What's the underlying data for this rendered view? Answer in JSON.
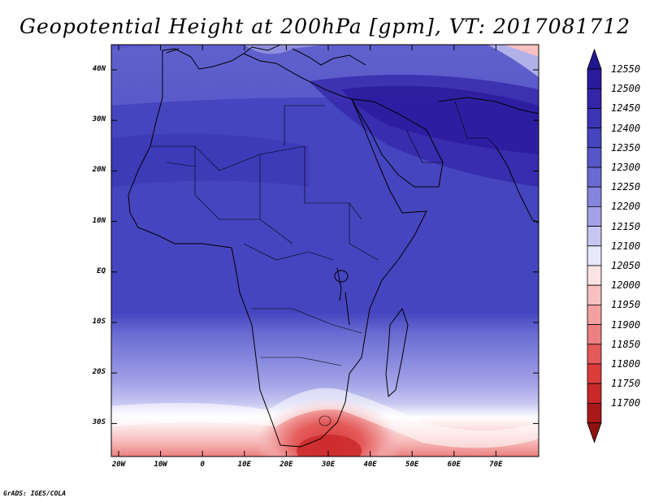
{
  "title": "Geopotential Height at 200hPa [gpm], VT: 2017081712",
  "credit": "GrADS: IGES/COLA",
  "lat_ticks": [
    "40N",
    "30N",
    "20N",
    "10N",
    "EQ",
    "10S",
    "20S",
    "30S"
  ],
  "lon_ticks": [
    "20W",
    "10W",
    "0",
    "10E",
    "20E",
    "30E",
    "40E",
    "50E",
    "60E",
    "70E"
  ],
  "colorbar": {
    "levels": [
      "12550",
      "12500",
      "12450",
      "12400",
      "12350",
      "12300",
      "12250",
      "12200",
      "12150",
      "12100",
      "12050",
      "12000",
      "11950",
      "11900",
      "11850",
      "11800",
      "11750",
      "11700"
    ],
    "colors": [
      "#2a1a9e",
      "#3325a8",
      "#3b35b4",
      "#4545bf",
      "#5656c8",
      "#6a6ad2",
      "#8585dd",
      "#a2a2e7",
      "#c6c6f1",
      "#e8e8fb",
      "#fbe3e3",
      "#f8c0c0",
      "#f2a0a0",
      "#ec8080",
      "#e45a5a",
      "#db3b3b",
      "#c92828",
      "#a81818"
    ],
    "top_color": "#20168f",
    "bottom_color": "#8f1212"
  }
}
